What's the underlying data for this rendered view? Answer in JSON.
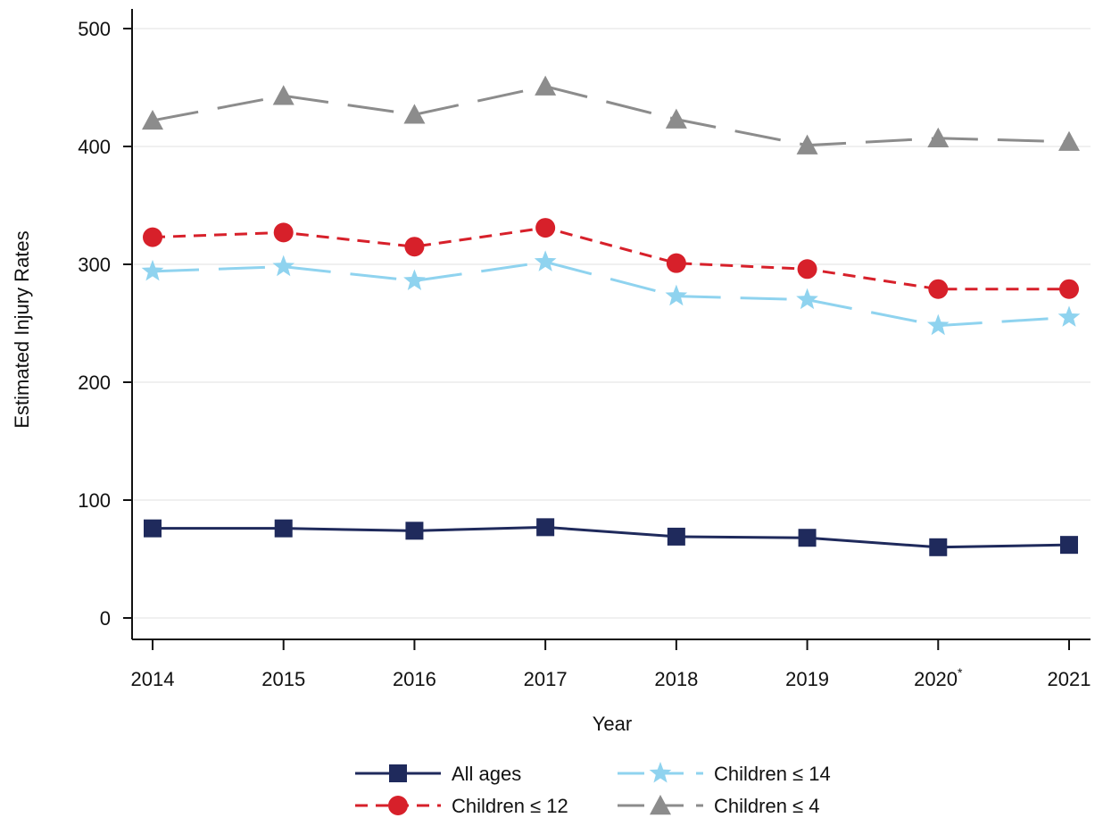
{
  "chart_data": {
    "type": "line",
    "xlabel": "Year",
    "ylabel": "Estimated Injury Rates",
    "categories": [
      "2014",
      "2015",
      "2016",
      "2017",
      "2018",
      "2019",
      "2020",
      "2021"
    ],
    "category_annotations": {
      "2020": "*"
    },
    "yticks": [
      0,
      100,
      200,
      300,
      400,
      500
    ],
    "ylim": [
      -20,
      520
    ],
    "grid": "horizontal",
    "legend_position": "bottom",
    "series": [
      {
        "name": "All ages",
        "values": [
          76,
          76,
          74,
          77,
          69,
          68,
          60,
          62
        ],
        "color": "#1f2a5c",
        "marker": "square",
        "dash": "solid"
      },
      {
        "name": "Children ≤ 12",
        "values": [
          323,
          327,
          315,
          331,
          301,
          296,
          279,
          279
        ],
        "color": "#d7202a",
        "marker": "circle",
        "dash": "short-dash"
      },
      {
        "name": "Children ≤ 14",
        "values": [
          294,
          298,
          286,
          302,
          273,
          270,
          248,
          255
        ],
        "color": "#8fd3ef",
        "marker": "star",
        "dash": "long-dash"
      },
      {
        "name": "Children ≤ 4",
        "values": [
          422,
          443,
          427,
          451,
          423,
          401,
          407,
          404
        ],
        "color": "#8c8c8c",
        "marker": "triangle",
        "dash": "long-dash"
      }
    ]
  }
}
